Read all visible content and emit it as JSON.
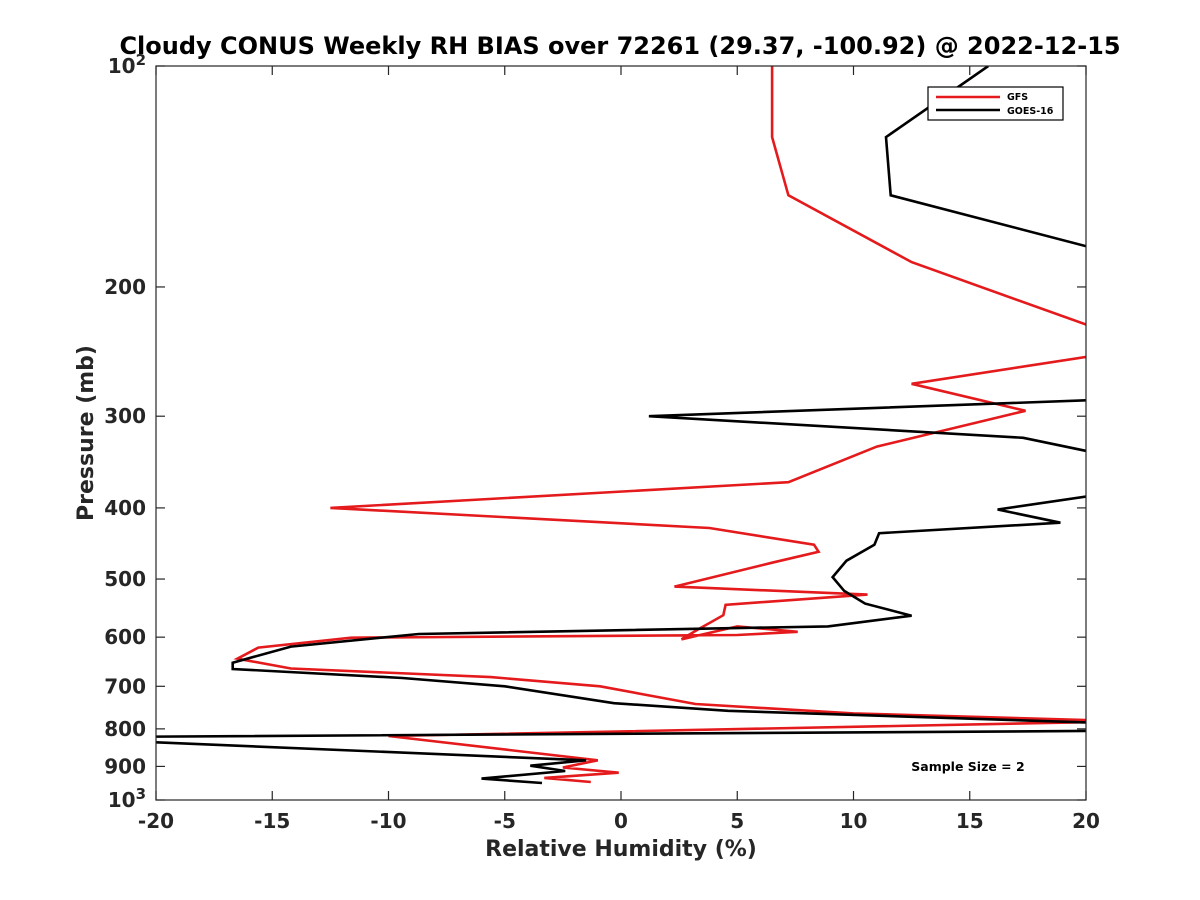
{
  "chart_data": {
    "type": "line",
    "title": "Cloudy CONUS Weekly RH BIAS over 72261 (29.37, -100.92) @ 2022-12-15",
    "xlabel": "Relative Humidity (%)",
    "ylabel": "Pressure (mb)",
    "xlim": [
      -20,
      20
    ],
    "ylim": [
      100,
      1000
    ],
    "y_scale": "log",
    "y_reversed": true,
    "grid": false,
    "legend_position": "top-right",
    "x_ticks": [
      "-20",
      "-15",
      "-10",
      "-5",
      "0",
      "5",
      "10",
      "15",
      "20"
    ],
    "y_ticks": [
      {
        "value": 100,
        "base": "10",
        "exp": "2"
      },
      {
        "value": 200,
        "label": "200"
      },
      {
        "value": 300,
        "label": "300"
      },
      {
        "value": 400,
        "label": "400"
      },
      {
        "value": 500,
        "label": "500"
      },
      {
        "value": 600,
        "label": "600"
      },
      {
        "value": 700,
        "label": "700"
      },
      {
        "value": 800,
        "label": "800"
      },
      {
        "value": 900,
        "label": "900"
      },
      {
        "value": 1000,
        "base": "10",
        "exp": "3"
      }
    ],
    "series": [
      {
        "name": "GFS",
        "color": "#e41a1c",
        "points": [
          [
            6.5,
            100
          ],
          [
            6.5,
            125
          ],
          [
            7.2,
            150
          ],
          [
            12.5,
            185
          ],
          [
            20.5,
            228
          ],
          [
            21.5,
            245
          ],
          [
            12.5,
            271
          ],
          [
            17.4,
            295
          ],
          [
            11,
            330
          ],
          [
            7.2,
            369
          ],
          [
            -12.5,
            400
          ],
          [
            3.8,
            426
          ],
          [
            8.3,
            449
          ],
          [
            8.5,
            459
          ],
          [
            6.5,
            475
          ],
          [
            2.3,
            512
          ],
          [
            10.6,
            525
          ],
          [
            4.5,
            542
          ],
          [
            4.4,
            560
          ],
          [
            3.3,
            586
          ],
          [
            2.6,
            604
          ],
          [
            5,
            580
          ],
          [
            7.6,
            590
          ],
          [
            5,
            596
          ],
          [
            -11.6,
            601
          ],
          [
            -15.6,
            620
          ],
          [
            -16.5,
            642
          ],
          [
            -14.2,
            662
          ],
          [
            -5.6,
            680
          ],
          [
            -0.9,
            700
          ],
          [
            3.2,
            740
          ],
          [
            10,
            762
          ],
          [
            20.5,
            779
          ],
          [
            20.5,
            783
          ],
          [
            -10,
            818
          ],
          [
            -1,
            883
          ],
          [
            -2.5,
            903
          ],
          [
            -0.1,
            918
          ],
          [
            -3.3,
            933
          ],
          [
            -1.3,
            945
          ]
        ]
      },
      {
        "name": "GOES-16",
        "color": "#000000",
        "points": [
          [
            15.8,
            100
          ],
          [
            11.4,
            125
          ],
          [
            11.6,
            150
          ],
          [
            20.3,
            177
          ],
          [
            20.3,
            257
          ],
          [
            20.5,
            285
          ],
          [
            1.2,
            300
          ],
          [
            17.3,
            321
          ],
          [
            20.5,
            337
          ],
          [
            20.5,
            384
          ],
          [
            16.2,
            402
          ],
          [
            18.9,
            419
          ],
          [
            11.1,
            433
          ],
          [
            10.9,
            449
          ],
          [
            9.7,
            472
          ],
          [
            9.1,
            497
          ],
          [
            9.6,
            519
          ],
          [
            10.5,
            540
          ],
          [
            12.5,
            561
          ],
          [
            8.9,
            580
          ],
          [
            -8.7,
            594
          ],
          [
            -14.2,
            618
          ],
          [
            -16.7,
            650
          ],
          [
            -16.7,
            663
          ],
          [
            -9.4,
            682
          ],
          [
            -5,
            700
          ],
          [
            -0.3,
            738
          ],
          [
            4.6,
            756
          ],
          [
            20.5,
            785
          ],
          [
            20.5,
            805
          ],
          [
            -20.5,
            820
          ],
          [
            -20.5,
            833
          ],
          [
            -1.5,
            883
          ],
          [
            -3.9,
            898
          ],
          [
            -2.4,
            913
          ],
          [
            -6,
            935
          ],
          [
            -3.4,
            948
          ]
        ]
      }
    ],
    "annotation": "Sample Size = 2"
  }
}
